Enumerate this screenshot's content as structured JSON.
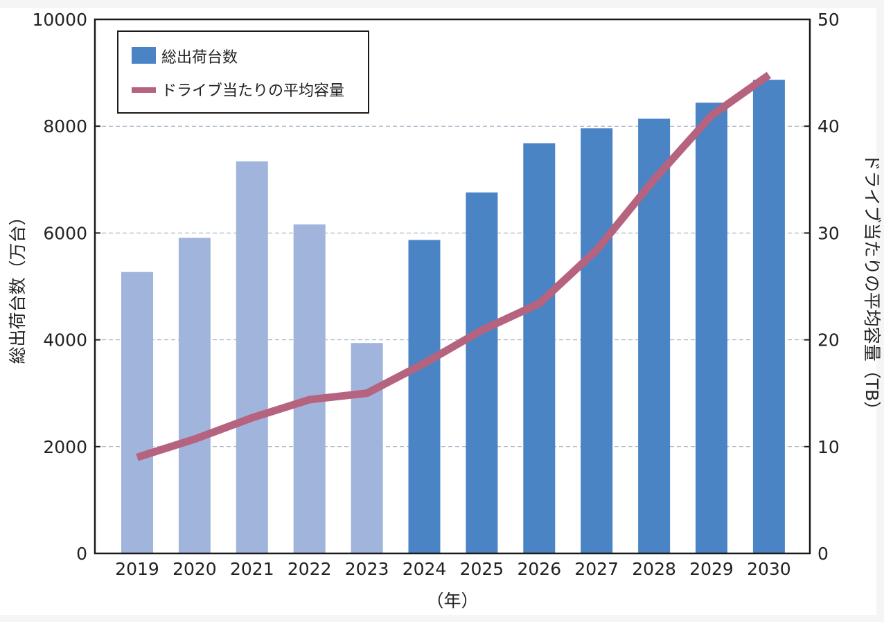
{
  "chart_data": {
    "type": "bar+line",
    "categories": [
      "2019",
      "2020",
      "2021",
      "2022",
      "2023",
      "2024",
      "2025",
      "2026",
      "2027",
      "2028",
      "2029",
      "2030"
    ],
    "series": [
      {
        "name": "総出荷台数",
        "type": "bar",
        "axis": "left",
        "values": [
          5270,
          5910,
          7340,
          6160,
          3940,
          5870,
          6760,
          7680,
          7960,
          8140,
          8440,
          8870
        ],
        "color": "#4b84c4",
        "historical_color": "#a1b4dc",
        "historical_count": 5
      },
      {
        "name": "ドライブ当たりの平均容量",
        "type": "line",
        "axis": "right",
        "values": [
          9.0,
          10.7,
          12.7,
          14.4,
          15.0,
          17.8,
          20.9,
          23.4,
          28.4,
          35.0,
          41.0,
          44.8
        ],
        "color": "#b5637f"
      }
    ],
    "ylabel_left": "総出荷台数（万台）",
    "ylabel_right": "ドライブ当たりの平均容量（TB）",
    "xlabel": "（年）",
    "ylim_left": [
      0,
      10000
    ],
    "ylim_right": [
      0,
      50
    ],
    "yticks_left": [
      "0",
      "2000",
      "4000",
      "6000",
      "8000",
      "10000"
    ],
    "yticks_right": [
      "0",
      "10",
      "20",
      "30",
      "40",
      "50"
    ],
    "grid": "horizontal dashed",
    "legend_position": "top-left",
    "colors": {
      "axis": "#1a1a1a",
      "grid": "#8fa3b8",
      "background": "#ffffff"
    }
  }
}
